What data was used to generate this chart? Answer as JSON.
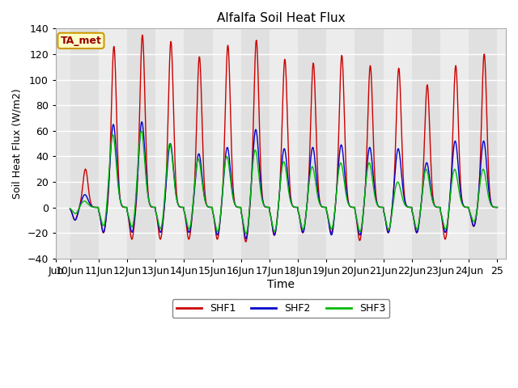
{
  "title": "Alfalfa Soil Heat Flux",
  "xlabel": "Time",
  "ylabel": "Soil Heat Flux (W/m2)",
  "ylim": [
    -40,
    140
  ],
  "yticks": [
    -40,
    -20,
    0,
    20,
    40,
    60,
    80,
    100,
    120,
    140
  ],
  "xtick_labels": [
    "Jun",
    "10Jun",
    "11Jun",
    "12Jun",
    "13Jun",
    "14Jun",
    "15Jun",
    "16Jun",
    "17Jun",
    "18Jun",
    "19Jun",
    "20Jun",
    "21Jun",
    "22Jun",
    "23Jun",
    "24Jun",
    "25"
  ],
  "shf1_color": "#cc0000",
  "shf2_color": "#0000cc",
  "shf3_color": "#00bb00",
  "annotation_text": "TA_met",
  "annotation_bg": "#ffffc8",
  "annotation_border": "#cc9900",
  "annotation_text_color": "#990000",
  "grid_color": "#cccccc",
  "plot_bg": "#e8e8e8",
  "band_color_even": "#e0e0e0",
  "band_color_odd": "#ececec",
  "fig_bg": "#ffffff",
  "legend_items": [
    "SHF1",
    "SHF2",
    "SHF3"
  ],
  "legend_colors": [
    "#cc0000",
    "#0000cc",
    "#00bb00"
  ],
  "n_days": 15,
  "points_per_day": 96,
  "shf1_peaks": [
    30,
    126,
    135,
    130,
    118,
    127,
    131,
    116,
    113,
    119,
    111,
    109,
    96,
    111,
    120
  ],
  "shf2_peaks": [
    10,
    65,
    67,
    50,
    42,
    47,
    61,
    46,
    47,
    49,
    47,
    46,
    35,
    52,
    52
  ],
  "shf3_peaks": [
    5,
    57,
    60,
    50,
    38,
    40,
    45,
    36,
    32,
    35,
    35,
    20,
    30,
    30,
    30
  ],
  "shf1_troughs": [
    -10,
    -20,
    -25,
    -25,
    -25,
    -25,
    -27,
    -22,
    -20,
    -20,
    -26,
    -20,
    -20,
    -25,
    -15
  ],
  "shf2_troughs": [
    -10,
    -20,
    -20,
    -20,
    -20,
    -22,
    -25,
    -22,
    -20,
    -22,
    -22,
    -20,
    -20,
    -20,
    -15
  ],
  "shf3_troughs": [
    -5,
    -16,
    -17,
    -18,
    -18,
    -20,
    -22,
    -20,
    -18,
    -18,
    -20,
    -18,
    -18,
    -18,
    -12
  ]
}
